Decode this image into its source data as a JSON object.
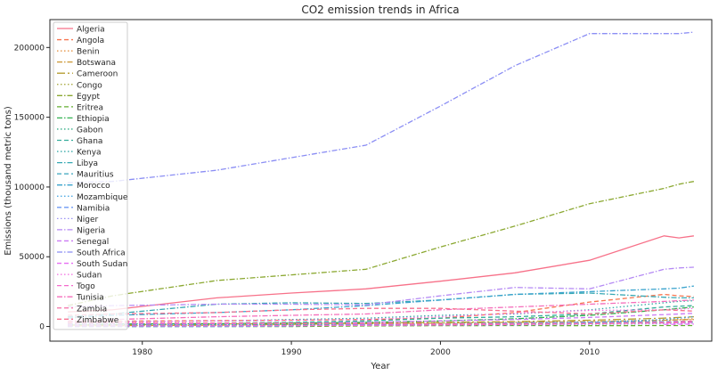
{
  "chart_data": {
    "type": "line",
    "title": "CO2 emission trends in Africa",
    "xlabel": "Year",
    "ylabel": "Emissions (thousand metric tons)",
    "xlim": [
      1973.8,
      2018.2
    ],
    "ylim": [
      -10500,
      220000
    ],
    "x_ticks": [
      1980,
      1990,
      2000,
      2010
    ],
    "y_ticks": [
      0,
      50000,
      100000,
      150000,
      200000
    ],
    "y_tick_labels": [
      "0",
      "50000",
      "100000",
      "150000",
      "200000"
    ],
    "grid": false,
    "legend_position": "upper-left",
    "x": [
      1975,
      1978,
      1985,
      1990,
      1995,
      2000,
      2005,
      2010,
      2015,
      2016,
      2017
    ],
    "series": [
      {
        "name": "Algeria",
        "color": "#f77189",
        "dash": "solid",
        "values": [
          10500,
          12000,
          20500,
          24000,
          27000,
          32500,
          38500,
          47500,
          65000,
          63500,
          65000
        ]
      },
      {
        "name": "Angola",
        "color": "#f7754f",
        "dash": "dashed",
        "values": [
          3500,
          3800,
          4200,
          4600,
          5000,
          6000,
          10000,
          17500,
          23000,
          22000,
          21500
        ]
      },
      {
        "name": "Benin",
        "color": "#e18832",
        "dash": "dotted",
        "values": [
          300,
          350,
          450,
          500,
          600,
          900,
          1500,
          2500,
          4500,
          5000,
          5500
        ]
      },
      {
        "name": "Botswana",
        "color": "#cb9632",
        "dash": "dashdot",
        "values": [
          500,
          600,
          900,
          1500,
          2000,
          2500,
          3000,
          3500,
          4500,
          4800,
          5000
        ]
      },
      {
        "name": "Cameroon",
        "color": "#b59d31",
        "dash": "longdashdot",
        "values": [
          1000,
          1200,
          1800,
          2000,
          2500,
          3000,
          3500,
          4500,
          6000,
          6500,
          7000
        ]
      },
      {
        "name": "Congo",
        "color": "#a1a231",
        "dash": "dotted",
        "values": [
          600,
          700,
          800,
          900,
          900,
          1000,
          1500,
          2000,
          3000,
          3200,
          3400
        ]
      },
      {
        "name": "Egypt",
        "color": "#8ba831",
        "dash": "dashdot",
        "values": [
          15000,
          22000,
          33000,
          37000,
          41000,
          57000,
          72000,
          88000,
          99000,
          102000,
          104000
        ]
      },
      {
        "name": "Eritrea",
        "color": "#64ae31",
        "dash": "dashed",
        "values": [
          0,
          0,
          0,
          0,
          400,
          600,
          700,
          600,
          700,
          700,
          700
        ]
      },
      {
        "name": "Ethiopia",
        "color": "#32b150",
        "dash": "dashdot",
        "values": [
          1500,
          1800,
          2000,
          2500,
          3000,
          4000,
          5500,
          8000,
          12000,
          13000,
          14000
        ]
      },
      {
        "name": "Gabon",
        "color": "#34ae86",
        "dash": "dotted",
        "values": [
          1200,
          1300,
          1400,
          1500,
          1600,
          1800,
          2000,
          2500,
          3000,
          3100,
          3200
        ]
      },
      {
        "name": "Ghana",
        "color": "#35ac9c",
        "dash": "dashed",
        "values": [
          2000,
          2200,
          2500,
          3000,
          4000,
          6000,
          7000,
          9000,
          14000,
          14500,
          15000
        ]
      },
      {
        "name": "Kenya",
        "color": "#36aaa8",
        "dash": "dotted",
        "values": [
          3000,
          3500,
          4000,
          5000,
          6000,
          8000,
          9000,
          12000,
          17000,
          18000,
          18500
        ]
      },
      {
        "name": "Libya",
        "color": "#37a8b3",
        "dash": "dashdot",
        "values": [
          7000,
          9000,
          16000,
          17000,
          16500,
          19000,
          23000,
          24000,
          21000,
          20500,
          20500
        ]
      },
      {
        "name": "Mauritius",
        "color": "#38a6be",
        "dash": "dashed",
        "values": [
          500,
          600,
          700,
          900,
          1200,
          1800,
          2500,
          3000,
          3500,
          3600,
          3700
        ]
      },
      {
        "name": "Morocco",
        "color": "#3aa3cd",
        "dash": "dashdot",
        "values": [
          6000,
          8000,
          10000,
          12000,
          15000,
          19000,
          23000,
          25000,
          27000,
          27500,
          29000
        ]
      },
      {
        "name": "Mozambique",
        "color": "#3ba0e0",
        "dash": "dotted",
        "values": [
          1500,
          1600,
          1200,
          1000,
          1200,
          1500,
          2000,
          3000,
          5000,
          6000,
          7000
        ]
      },
      {
        "name": "Namibia",
        "color": "#6d9af4",
        "dash": "dashed",
        "values": [
          0,
          0,
          0,
          300,
          1500,
          2000,
          2500,
          3000,
          3500,
          3700,
          3800
        ]
      },
      {
        "name": "Niger",
        "color": "#9b92f4",
        "dash": "dotted",
        "values": [
          300,
          400,
          600,
          800,
          800,
          900,
          1000,
          1500,
          2000,
          2200,
          2400
        ]
      },
      {
        "name": "Nigeria",
        "color": "#b58af4",
        "dash": "dashdot",
        "values": [
          14000,
          15000,
          16000,
          16000,
          15500,
          22000,
          28000,
          27000,
          41000,
          42000,
          42500
        ]
      },
      {
        "name": "Senegal",
        "color": "#cc7af4",
        "dash": "dashed",
        "values": [
          1500,
          1700,
          2000,
          2300,
          3000,
          4000,
          5000,
          6500,
          8500,
          9000,
          9500
        ]
      },
      {
        "name": "South Africa",
        "color": "#8b8ef4",
        "dash": "dashdot",
        "values": [
          103000,
          104000,
          112000,
          121000,
          130000,
          158000,
          187000,
          210000,
          210000,
          210000,
          211000
        ]
      },
      {
        "name": "South Sudan",
        "color": "#e76ef3",
        "dash": "dashed",
        "values": [
          null,
          null,
          null,
          null,
          null,
          null,
          null,
          null,
          1500,
          1600,
          1700
        ]
      },
      {
        "name": "Sudan",
        "color": "#f36ae0",
        "dash": "dotted",
        "values": [
          3000,
          3500,
          4000,
          4500,
          5000,
          7000,
          9500,
          11500,
          12000,
          12500,
          13000
        ]
      },
      {
        "name": "Togo",
        "color": "#f46bcd",
        "dash": "dashed",
        "values": [
          400,
          450,
          500,
          600,
          800,
          1100,
          1500,
          2000,
          2500,
          2700,
          2900
        ]
      },
      {
        "name": "Tunisia",
        "color": "#f56ebb",
        "dash": "dashdot",
        "values": [
          4000,
          5000,
          7000,
          8000,
          9000,
          12000,
          14000,
          16000,
          18000,
          18500,
          19000
        ]
      },
      {
        "name": "Zambia",
        "color": "#f56fa6",
        "dash": "dashed",
        "values": [
          2500,
          2700,
          2500,
          2400,
          2000,
          1800,
          2000,
          2200,
          3000,
          3500,
          4000
        ]
      },
      {
        "name": "Zimbabwe",
        "color": "#f6718f",
        "dash": "dashed",
        "values": [
          8000,
          9000,
          10000,
          12000,
          13000,
          13000,
          11000,
          9000,
          12000,
          11500,
          11000
        ]
      }
    ]
  }
}
